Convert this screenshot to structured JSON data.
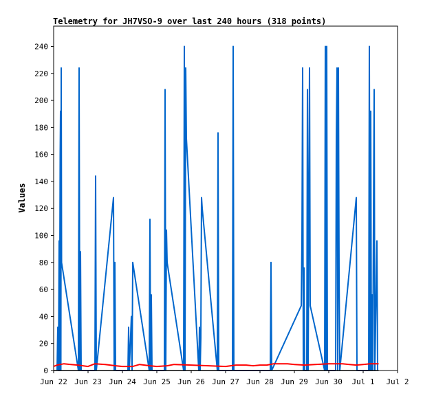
{
  "chart_data": {
    "type": "line",
    "title": "Telemetry for JH7VSO-9 over last 240 hours (318 points)",
    "xlabel": "",
    "ylabel": "Values",
    "x_unit": "date",
    "x_ticks": [
      "Jun 22",
      "Jun 23",
      "Jun 24",
      "Jun 25",
      "Jun 26",
      "Jun 27",
      "Jun 28",
      "Jun 29",
      "Jun 30",
      "Jul 1",
      "Jul 2"
    ],
    "x_range_days": [
      0,
      10
    ],
    "ylim": [
      0,
      255
    ],
    "y_ticks": [
      0,
      20,
      40,
      60,
      80,
      100,
      120,
      140,
      160,
      180,
      200,
      220,
      240
    ],
    "grid": false,
    "series": [
      {
        "color": "#0066cc",
        "points": [
          [
            0.1,
            0
          ],
          [
            0.12,
            32
          ],
          [
            0.14,
            0
          ],
          [
            0.16,
            96
          ],
          [
            0.17,
            0
          ],
          [
            0.19,
            160
          ],
          [
            0.2,
            192
          ],
          [
            0.21,
            0
          ],
          [
            0.22,
            224
          ],
          [
            0.23,
            80
          ],
          [
            0.72,
            0
          ],
          [
            0.74,
            224
          ],
          [
            0.76,
            0
          ],
          [
            0.78,
            88
          ],
          [
            0.8,
            0
          ],
          [
            1.2,
            0
          ],
          [
            1.22,
            144
          ],
          [
            1.24,
            0
          ],
          [
            1.74,
            128
          ],
          [
            1.76,
            0
          ],
          [
            1.78,
            80
          ],
          [
            1.8,
            0
          ],
          [
            2.16,
            0
          ],
          [
            2.18,
            32
          ],
          [
            2.2,
            0
          ],
          [
            2.26,
            40
          ],
          [
            2.28,
            0
          ],
          [
            2.3,
            80
          ],
          [
            2.78,
            0
          ],
          [
            2.8,
            112
          ],
          [
            2.82,
            0
          ],
          [
            2.84,
            56
          ],
          [
            2.86,
            0
          ],
          [
            3.22,
            0
          ],
          [
            3.24,
            208
          ],
          [
            3.26,
            0
          ],
          [
            3.28,
            104
          ],
          [
            3.3,
            80
          ],
          [
            3.78,
            0
          ],
          [
            3.8,
            240
          ],
          [
            3.82,
            0
          ],
          [
            3.84,
            224
          ],
          [
            3.86,
            172
          ],
          [
            4.22,
            0
          ],
          [
            4.24,
            32
          ],
          [
            4.26,
            0
          ],
          [
            4.28,
            24
          ],
          [
            4.3,
            128
          ],
          [
            4.32,
            120
          ],
          [
            4.76,
            0
          ],
          [
            4.78,
            176
          ],
          [
            4.8,
            0
          ],
          [
            5.2,
            0
          ],
          [
            5.22,
            240
          ],
          [
            5.24,
            0
          ],
          [
            6.3,
            0
          ],
          [
            6.32,
            80
          ],
          [
            6.34,
            0
          ],
          [
            7.2,
            48
          ],
          [
            7.22,
            96
          ],
          [
            7.24,
            224
          ],
          [
            7.26,
            0
          ],
          [
            7.28,
            76
          ],
          [
            7.3,
            0
          ],
          [
            7.36,
            0
          ],
          [
            7.38,
            208
          ],
          [
            7.4,
            0
          ],
          [
            7.44,
            224
          ],
          [
            7.46,
            48
          ],
          [
            7.88,
            0
          ],
          [
            7.9,
            240
          ],
          [
            7.92,
            0
          ],
          [
            7.94,
            240
          ],
          [
            7.96,
            0
          ],
          [
            8.2,
            0
          ],
          [
            8.22,
            172
          ],
          [
            8.24,
            224
          ],
          [
            8.26,
            0
          ],
          [
            8.28,
            224
          ],
          [
            8.3,
            72
          ],
          [
            8.32,
            0
          ],
          [
            8.8,
            128
          ],
          [
            8.82,
            0
          ],
          [
            9.16,
            0
          ],
          [
            9.18,
            240
          ],
          [
            9.2,
            0
          ],
          [
            9.22,
            192
          ],
          [
            9.24,
            0
          ],
          [
            9.26,
            56
          ],
          [
            9.28,
            0
          ],
          [
            9.3,
            112
          ],
          [
            9.32,
            208
          ],
          [
            9.34,
            0
          ],
          [
            9.4,
            96
          ],
          [
            9.42,
            0
          ]
        ]
      },
      {
        "color": "#ff0000",
        "points": [
          [
            0.0,
            3.0
          ],
          [
            0.1,
            4.0
          ],
          [
            0.3,
            5.0
          ],
          [
            0.5,
            4.5
          ],
          [
            0.7,
            4.0
          ],
          [
            1.0,
            3.0
          ],
          [
            1.2,
            5.0
          ],
          [
            1.5,
            4.5
          ],
          [
            1.8,
            3.5
          ],
          [
            2.0,
            3.0
          ],
          [
            2.3,
            3.0
          ],
          [
            2.5,
            4.5
          ],
          [
            2.8,
            3.5
          ],
          [
            3.0,
            3.0
          ],
          [
            3.3,
            3.5
          ],
          [
            3.5,
            4.5
          ],
          [
            4.0,
            4.0
          ],
          [
            4.5,
            3.5
          ],
          [
            5.0,
            3.0
          ],
          [
            5.3,
            4.0
          ],
          [
            5.6,
            4.0
          ],
          [
            5.8,
            3.5
          ],
          [
            6.0,
            4.0
          ],
          [
            6.2,
            4.0
          ],
          [
            6.4,
            5.0
          ],
          [
            6.8,
            5.0
          ],
          [
            7.0,
            4.5
          ],
          [
            7.3,
            4.0
          ],
          [
            7.6,
            4.5
          ],
          [
            8.0,
            5.0
          ],
          [
            8.4,
            5.0
          ],
          [
            8.6,
            4.5
          ],
          [
            8.8,
            4.0
          ],
          [
            9.0,
            4.5
          ],
          [
            9.2,
            5.0
          ],
          [
            9.45,
            5.0
          ]
        ]
      },
      {
        "color": "#000000",
        "points": [
          [
            0.0,
            0
          ],
          [
            9.45,
            0
          ]
        ]
      }
    ]
  }
}
